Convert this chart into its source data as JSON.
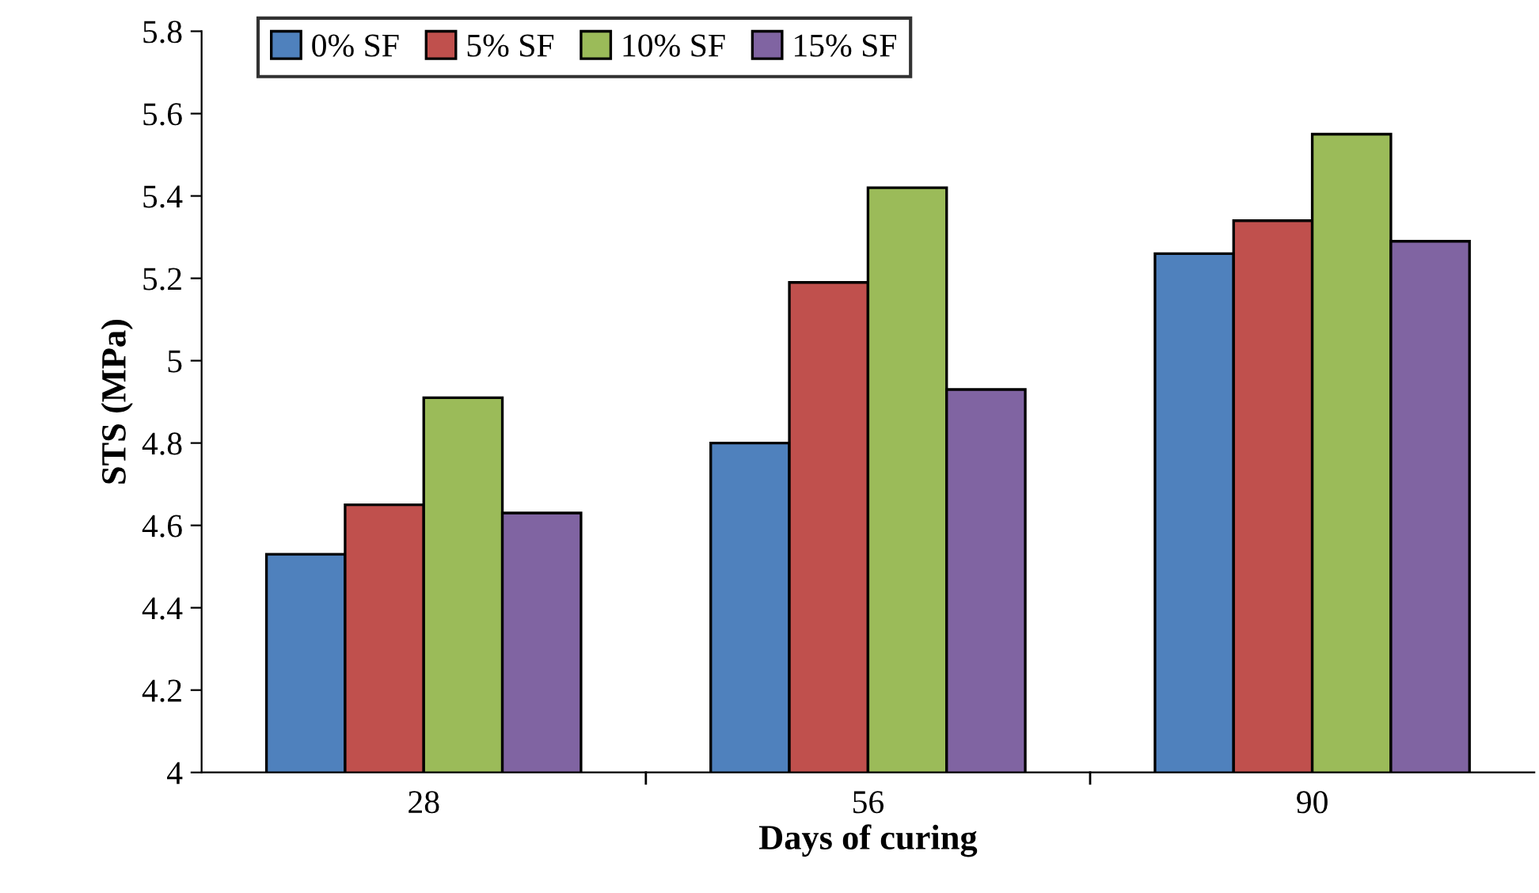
{
  "chart_data": {
    "type": "bar",
    "xlabel": "Days of curing",
    "ylabel": "STS (MPa)",
    "categories": [
      "28",
      "56",
      "90"
    ],
    "series": [
      {
        "name": "0% SF",
        "color": "#4f81bd",
        "values": [
          4.53,
          4.8,
          5.26
        ]
      },
      {
        "name": "5% SF",
        "color": "#c0504d",
        "values": [
          4.65,
          5.19,
          5.34
        ]
      },
      {
        "name": "10% SF",
        "color": "#9bbb59",
        "values": [
          4.91,
          5.42,
          5.55
        ]
      },
      {
        "name": "15% SF",
        "color": "#8064a2",
        "values": [
          4.63,
          4.93,
          5.29
        ]
      }
    ],
    "ylim": [
      4,
      5.8
    ],
    "yticks": [
      4,
      4.2,
      4.4,
      4.6,
      4.8,
      5,
      5.2,
      5.4,
      5.6,
      5.8
    ],
    "grid": false,
    "legend": "top left"
  }
}
